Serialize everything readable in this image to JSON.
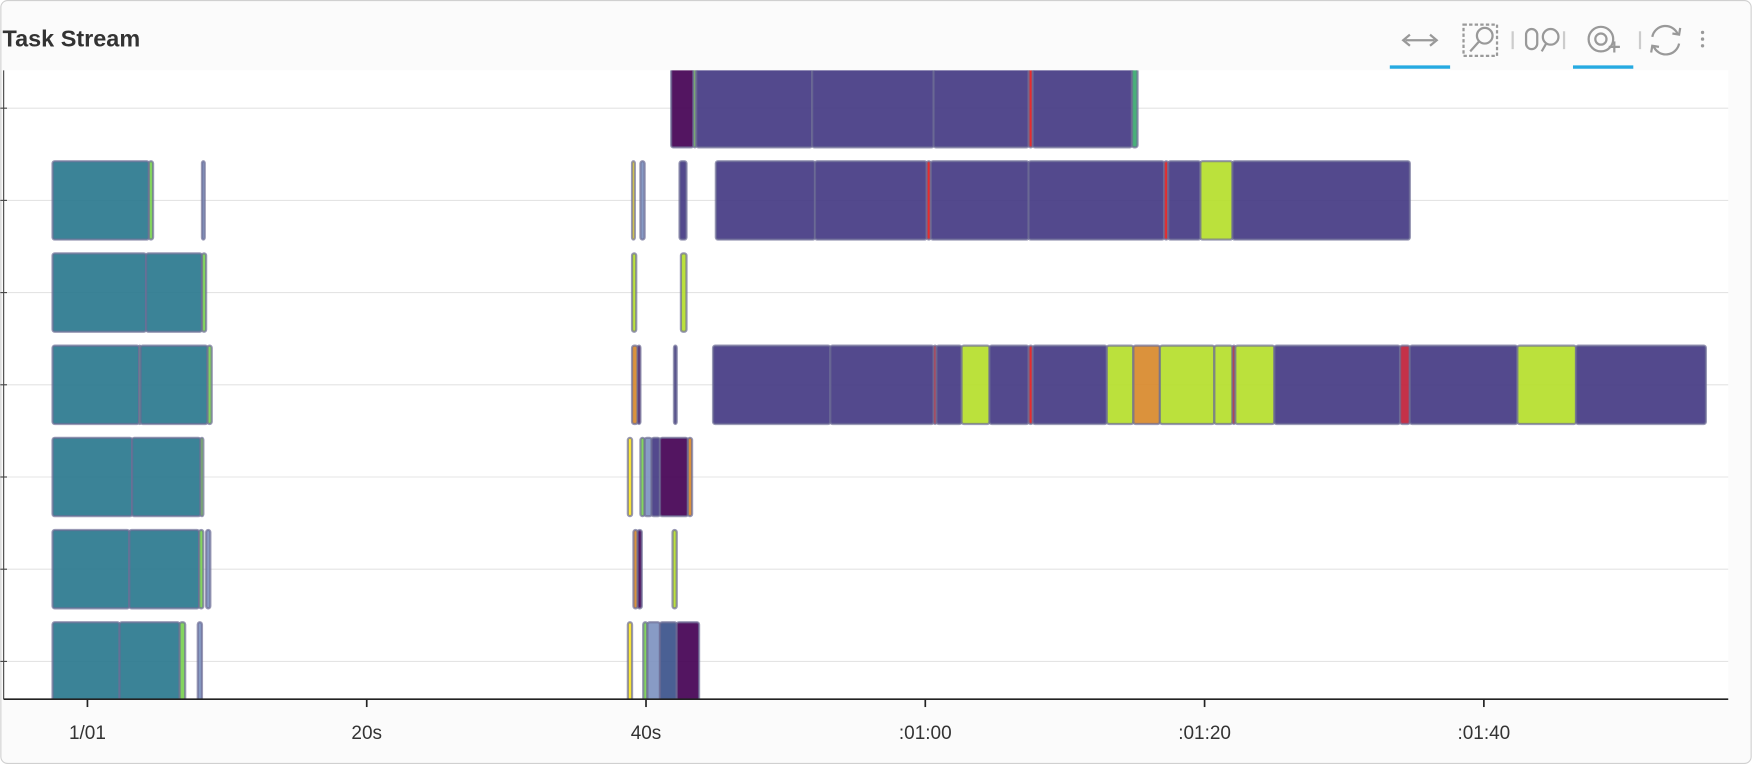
{
  "chart_data": {
    "type": "task-stream",
    "title": "Task Stream",
    "xlim": [
      -6,
      117.5
    ],
    "xticks": [
      {
        "value": 0,
        "label": "1/01"
      },
      {
        "value": 20,
        "label": "20s"
      },
      {
        "value": 40,
        "label": "40s"
      },
      {
        "value": 60,
        "label": ":01:00"
      },
      {
        "value": 80,
        "label": ":01:20"
      },
      {
        "value": 100,
        "label": ":01:40"
      }
    ],
    "ylim": [
      -0.41,
      6.41
    ],
    "yticks": [
      0,
      1,
      2,
      3,
      4,
      5,
      6
    ],
    "grid": true,
    "tasks": [
      {
        "row": 0,
        "start": 41.8,
        "end": 43.4,
        "color": "#440154"
      },
      {
        "row": 0,
        "start": 43.4,
        "end": 43.6,
        "color": "#7ad151"
      },
      {
        "row": 0,
        "start": 43.6,
        "end": 51.9,
        "color": "#443983"
      },
      {
        "row": 0,
        "start": 51.9,
        "end": 60.6,
        "color": "#443983"
      },
      {
        "row": 0,
        "start": 60.6,
        "end": 67.4,
        "color": "#443983"
      },
      {
        "row": 0,
        "start": 67.4,
        "end": 67.7,
        "color": "#e31a1c"
      },
      {
        "row": 0,
        "start": 67.7,
        "end": 74.8,
        "color": "#443983"
      },
      {
        "row": 0,
        "start": 74.8,
        "end": 75.2,
        "color": "#3aa86f"
      },
      {
        "row": 1,
        "start": -2.5,
        "end": 4.4,
        "color": "#2a788e"
      },
      {
        "row": 1,
        "start": 4.4,
        "end": 4.7,
        "color": "#7ad151"
      },
      {
        "row": 1,
        "start": 8.2,
        "end": 8.4,
        "color": "#7e93c0"
      },
      {
        "row": 1,
        "start": 39.0,
        "end": 39.2,
        "color": "#fde725"
      },
      {
        "row": 1,
        "start": 39.6,
        "end": 39.9,
        "color": "#7e93c0"
      },
      {
        "row": 1,
        "start": 42.4,
        "end": 42.9,
        "color": "#443983"
      },
      {
        "row": 1,
        "start": 45.0,
        "end": 52.1,
        "color": "#443983"
      },
      {
        "row": 1,
        "start": 52.1,
        "end": 60.1,
        "color": "#443983"
      },
      {
        "row": 1,
        "start": 60.1,
        "end": 60.4,
        "color": "#e31a1c"
      },
      {
        "row": 1,
        "start": 60.4,
        "end": 67.4,
        "color": "#443983"
      },
      {
        "row": 1,
        "start": 67.4,
        "end": 77.1,
        "color": "#443983"
      },
      {
        "row": 1,
        "start": 77.1,
        "end": 77.4,
        "color": "#e31a1c"
      },
      {
        "row": 1,
        "start": 77.4,
        "end": 79.7,
        "color": "#443983"
      },
      {
        "row": 1,
        "start": 79.7,
        "end": 82.0,
        "color": "#b5de2b"
      },
      {
        "row": 1,
        "start": 82.0,
        "end": 94.7,
        "color": "#443983"
      },
      {
        "row": 2,
        "start": -2.5,
        "end": 4.2,
        "color": "#2a788e"
      },
      {
        "row": 2,
        "start": 4.2,
        "end": 8.2,
        "color": "#2a788e"
      },
      {
        "row": 2,
        "start": 8.2,
        "end": 8.5,
        "color": "#7ad151"
      },
      {
        "row": 2,
        "start": 39.0,
        "end": 39.3,
        "color": "#b5de2b"
      },
      {
        "row": 2,
        "start": 42.5,
        "end": 42.9,
        "color": "#b5de2b"
      },
      {
        "row": 3,
        "start": -2.5,
        "end": 3.7,
        "color": "#2a788e"
      },
      {
        "row": 3,
        "start": 3.7,
        "end": 3.8,
        "color": "#7ad151"
      },
      {
        "row": 3,
        "start": 3.8,
        "end": 8.6,
        "color": "#2a788e"
      },
      {
        "row": 3,
        "start": 8.6,
        "end": 8.9,
        "color": "#7ad151"
      },
      {
        "row": 3,
        "start": 39.0,
        "end": 39.4,
        "color": "#d8892b"
      },
      {
        "row": 3,
        "start": 39.4,
        "end": 39.6,
        "color": "#440154"
      },
      {
        "row": 3,
        "start": 42.0,
        "end": 42.2,
        "color": "#443983"
      },
      {
        "row": 3,
        "start": 44.8,
        "end": 53.2,
        "color": "#443983"
      },
      {
        "row": 3,
        "start": 53.2,
        "end": 60.6,
        "color": "#443983"
      },
      {
        "row": 3,
        "start": 60.6,
        "end": 60.8,
        "color": "#e31a1c"
      },
      {
        "row": 3,
        "start": 60.8,
        "end": 62.6,
        "color": "#443983"
      },
      {
        "row": 3,
        "start": 62.6,
        "end": 64.6,
        "color": "#b5de2b"
      },
      {
        "row": 3,
        "start": 64.6,
        "end": 67.4,
        "color": "#443983"
      },
      {
        "row": 3,
        "start": 67.4,
        "end": 67.7,
        "color": "#e31a1c"
      },
      {
        "row": 3,
        "start": 67.7,
        "end": 73.0,
        "color": "#443983"
      },
      {
        "row": 3,
        "start": 73.0,
        "end": 74.9,
        "color": "#b5de2b"
      },
      {
        "row": 3,
        "start": 74.9,
        "end": 76.8,
        "color": "#d8892b"
      },
      {
        "row": 3,
        "start": 76.8,
        "end": 80.7,
        "color": "#b5de2b"
      },
      {
        "row": 3,
        "start": 80.7,
        "end": 82.0,
        "color": "#b5de2b"
      },
      {
        "row": 3,
        "start": 82.0,
        "end": 82.2,
        "color": "#e31a1c"
      },
      {
        "row": 3,
        "start": 82.2,
        "end": 85.0,
        "color": "#b5de2b"
      },
      {
        "row": 3,
        "start": 85.0,
        "end": 94.0,
        "color": "#443983"
      },
      {
        "row": 3,
        "start": 94.0,
        "end": 94.7,
        "color": "#c0203a"
      },
      {
        "row": 3,
        "start": 94.7,
        "end": 102.4,
        "color": "#443983"
      },
      {
        "row": 3,
        "start": 102.4,
        "end": 106.6,
        "color": "#b5de2b"
      },
      {
        "row": 3,
        "start": 106.6,
        "end": 115.9,
        "color": "#443983"
      },
      {
        "row": 4,
        "start": -2.5,
        "end": 3.2,
        "color": "#2a788e"
      },
      {
        "row": 4,
        "start": 3.2,
        "end": 8.1,
        "color": "#2a788e"
      },
      {
        "row": 4,
        "start": 8.1,
        "end": 8.3,
        "color": "#7ad151"
      },
      {
        "row": 4,
        "start": 38.7,
        "end": 39.0,
        "color": "#fde725"
      },
      {
        "row": 4,
        "start": 39.6,
        "end": 39.9,
        "color": "#7ad151"
      },
      {
        "row": 4,
        "start": 39.9,
        "end": 40.4,
        "color": "#7e93c0"
      },
      {
        "row": 4,
        "start": 40.4,
        "end": 41.0,
        "color": "#443983"
      },
      {
        "row": 4,
        "start": 41.0,
        "end": 43.0,
        "color": "#440154"
      },
      {
        "row": 4,
        "start": 43.0,
        "end": 43.3,
        "color": "#d8892b"
      },
      {
        "row": 5,
        "start": -2.5,
        "end": 3.0,
        "color": "#2a788e"
      },
      {
        "row": 5,
        "start": 3.0,
        "end": 8.0,
        "color": "#2a788e"
      },
      {
        "row": 5,
        "start": 8.0,
        "end": 8.3,
        "color": "#7ad151"
      },
      {
        "row": 5,
        "start": 8.5,
        "end": 8.8,
        "color": "#7e93c0"
      },
      {
        "row": 5,
        "start": 39.1,
        "end": 39.4,
        "color": "#d8892b"
      },
      {
        "row": 5,
        "start": 39.4,
        "end": 39.7,
        "color": "#440154"
      },
      {
        "row": 5,
        "start": 41.9,
        "end": 42.2,
        "color": "#b5de2b"
      },
      {
        "row": 6,
        "start": -2.5,
        "end": 2.3,
        "color": "#2a788e"
      },
      {
        "row": 6,
        "start": 2.3,
        "end": 6.6,
        "color": "#2a788e"
      },
      {
        "row": 6,
        "start": 6.6,
        "end": 7.0,
        "color": "#7ad151"
      },
      {
        "row": 6,
        "start": 7.9,
        "end": 8.2,
        "color": "#7e93c0"
      },
      {
        "row": 6,
        "start": 38.7,
        "end": 39.0,
        "color": "#fde725"
      },
      {
        "row": 6,
        "start": 39.8,
        "end": 40.1,
        "color": "#7ad151"
      },
      {
        "row": 6,
        "start": 40.1,
        "end": 41.0,
        "color": "#7e93c0"
      },
      {
        "row": 6,
        "start": 41.0,
        "end": 42.2,
        "color": "#3b528b"
      },
      {
        "row": 6,
        "start": 42.2,
        "end": 43.8,
        "color": "#440154"
      }
    ]
  }
}
